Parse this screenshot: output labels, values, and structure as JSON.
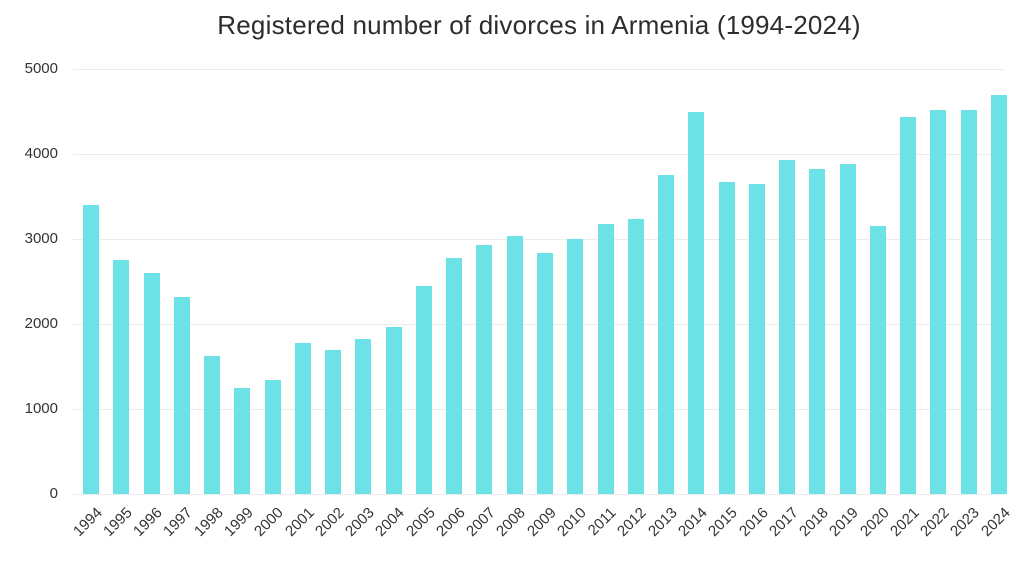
{
  "title": "Registered number of divorces in Armenia (1994-2024)",
  "colors": {
    "bar": "#6ce2e7",
    "grid": "#ececec",
    "axis_text": "#333333",
    "title_text": "#2d2d2d",
    "background": "#ffffff"
  },
  "chart_data": {
    "type": "bar",
    "title": "Registered number of divorces in Armenia (1994-2024)",
    "xlabel": "",
    "ylabel": "",
    "categories": [
      "1994",
      "1995",
      "1996",
      "1997",
      "1998",
      "1999",
      "2000",
      "2001",
      "2002",
      "2003",
      "2004",
      "2005",
      "2006",
      "2007",
      "2008",
      "2009",
      "2010",
      "2011",
      "2012",
      "2013",
      "2014",
      "2015",
      "2016",
      "2017",
      "2018",
      "2019",
      "2020",
      "2021",
      "2022",
      "2023",
      "2024"
    ],
    "values": [
      3400,
      2750,
      2600,
      2320,
      1620,
      1250,
      1340,
      1780,
      1690,
      1820,
      1970,
      2450,
      2780,
      2930,
      3030,
      2830,
      3000,
      3180,
      3240,
      3750,
      4500,
      3670,
      3650,
      3930,
      3820,
      3880,
      3150,
      4430,
      4520,
      4520,
      4690
    ],
    "ylim": [
      0,
      5000
    ],
    "yticks": [
      0,
      1000,
      2000,
      3000,
      4000,
      5000
    ],
    "grid": true,
    "legend": false,
    "bar_color": "#6ce2e7"
  }
}
